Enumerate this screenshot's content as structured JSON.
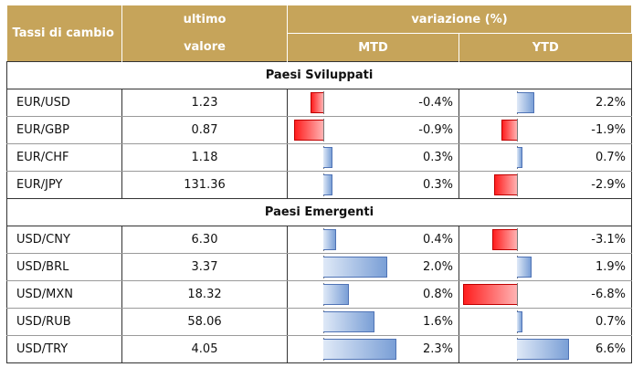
{
  "header": {
    "name_col": "Tassi di cambio",
    "last_line1": "ultimo",
    "last_line2": "valore",
    "variation": "variazione (%)",
    "mtd": "MTD",
    "ytd": "YTD"
  },
  "sections": [
    {
      "title": "Paesi Sviluppati",
      "rows": [
        {
          "pair": "EUR/USD",
          "value": "1.23",
          "mtd": -0.4,
          "mtd_label": "-0.4%",
          "ytd": 2.2,
          "ytd_label": "2.2%"
        },
        {
          "pair": "EUR/GBP",
          "value": "0.87",
          "mtd": -0.9,
          "mtd_label": "-0.9%",
          "ytd": -1.9,
          "ytd_label": "-1.9%"
        },
        {
          "pair": "EUR/CHF",
          "value": "1.18",
          "mtd": 0.3,
          "mtd_label": "0.3%",
          "ytd": 0.7,
          "ytd_label": "0.7%"
        },
        {
          "pair": "EUR/JPY",
          "value": "131.36",
          "mtd": 0.3,
          "mtd_label": "0.3%",
          "ytd": -2.9,
          "ytd_label": "-2.9%"
        }
      ]
    },
    {
      "title": "Paesi Emergenti",
      "rows": [
        {
          "pair": "USD/CNY",
          "value": "6.30",
          "mtd": 0.4,
          "mtd_label": "0.4%",
          "ytd": -3.1,
          "ytd_label": "-3.1%"
        },
        {
          "pair": "USD/BRL",
          "value": "3.37",
          "mtd": 2.0,
          "mtd_label": "2.0%",
          "ytd": 1.9,
          "ytd_label": "1.9%"
        },
        {
          "pair": "USD/MXN",
          "value": "18.32",
          "mtd": 0.8,
          "mtd_label": "0.8%",
          "ytd": -6.8,
          "ytd_label": "-6.8%"
        },
        {
          "pair": "USD/RUB",
          "value": "58.06",
          "mtd": 1.6,
          "mtd_label": "1.6%",
          "ytd": 0.7,
          "ytd_label": "0.7%"
        },
        {
          "pair": "USD/TRY",
          "value": "4.05",
          "mtd": 2.3,
          "mtd_label": "2.3%",
          "ytd": 6.6,
          "ytd_label": "6.6%"
        }
      ]
    }
  ],
  "scales": {
    "mtd": {
      "min": -1.0,
      "max": 2.3
    },
    "ytd": {
      "min": -6.8,
      "max": 6.6
    }
  }
}
